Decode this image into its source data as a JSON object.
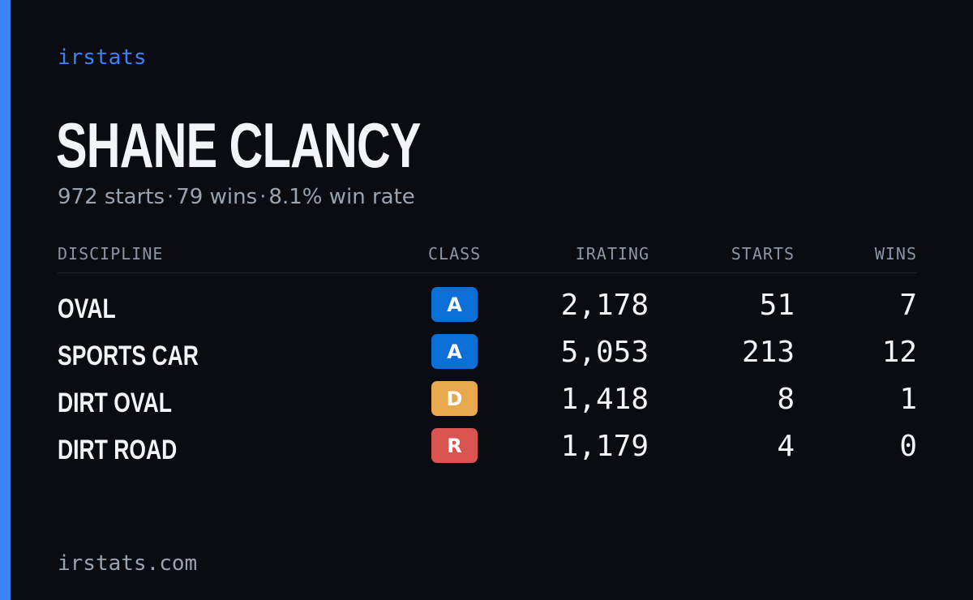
{
  "brand": "irstats",
  "driver": {
    "name": "SHANE CLANCY",
    "summary_starts": "972 starts",
    "summary_wins": "79 wins",
    "summary_win_rate": "8.1% win rate",
    "separator": "·"
  },
  "table": {
    "headers": {
      "discipline": "DISCIPLINE",
      "class": "CLASS",
      "irating": "IRATING",
      "starts": "STARTS",
      "wins": "WINS"
    },
    "rows": [
      {
        "discipline": "OVAL",
        "class": "A",
        "class_color": "#0b6fd8",
        "irating": "2,178",
        "starts": "51",
        "wins": "7"
      },
      {
        "discipline": "SPORTS CAR",
        "class": "A",
        "class_color": "#0b6fd8",
        "irating": "5,053",
        "starts": "213",
        "wins": "12"
      },
      {
        "discipline": "DIRT OVAL",
        "class": "D",
        "class_color": "#e8a94c",
        "irating": "1,418",
        "starts": "8",
        "wins": "1"
      },
      {
        "discipline": "DIRT ROAD",
        "class": "R",
        "class_color": "#d9534f",
        "irating": "1,179",
        "starts": "4",
        "wins": "0"
      }
    ]
  },
  "footer": "irstats.com",
  "colors": {
    "accent": "#3b82f6",
    "background": "#0a0c12",
    "text": "#f3f4f7",
    "muted": "#9aa3b2"
  }
}
